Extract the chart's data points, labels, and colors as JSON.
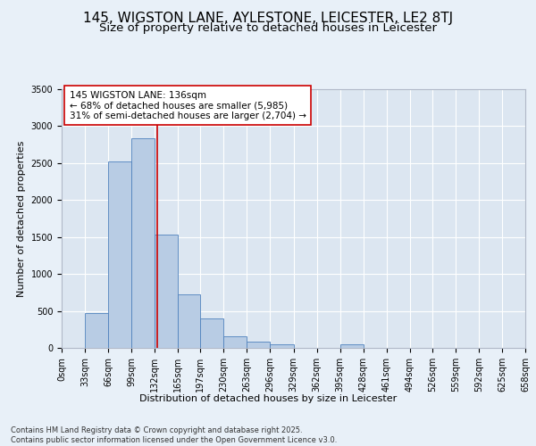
{
  "title": "145, WIGSTON LANE, AYLESTONE, LEICESTER, LE2 8TJ",
  "subtitle": "Size of property relative to detached houses in Leicester",
  "xlabel": "Distribution of detached houses by size in Leicester",
  "ylabel": "Number of detached properties",
  "footer": "Contains HM Land Registry data © Crown copyright and database right 2025.\nContains public sector information licensed under the Open Government Licence v3.0.",
  "bin_edges": [
    0,
    33,
    66,
    99,
    132,
    165,
    197,
    230,
    263,
    296,
    329,
    362,
    395,
    428,
    461,
    494,
    526,
    559,
    592,
    625,
    658
  ],
  "bar_heights": [
    0,
    470,
    2520,
    2840,
    1530,
    720,
    400,
    155,
    80,
    50,
    0,
    0,
    50,
    0,
    0,
    0,
    0,
    0,
    0,
    0
  ],
  "bar_color": "#b8cce4",
  "bar_edge_color": "#4f81bd",
  "background_color": "#dce6f1",
  "grid_color": "#ffffff",
  "fig_background_color": "#e8f0f8",
  "vline_x": 136,
  "vline_color": "#cc0000",
  "annotation_text": "145 WIGSTON LANE: 136sqm\n← 68% of detached houses are smaller (5,985)\n31% of semi-detached houses are larger (2,704) →",
  "annotation_box_color": "#ffffff",
  "annotation_box_edge_color": "#cc0000",
  "ylim": [
    0,
    3500
  ],
  "yticks": [
    0,
    500,
    1000,
    1500,
    2000,
    2500,
    3000,
    3500
  ],
  "title_fontsize": 11,
  "subtitle_fontsize": 9.5,
  "annotation_fontsize": 7.5,
  "axis_fontsize": 8,
  "tick_fontsize": 7,
  "footer_fontsize": 6
}
